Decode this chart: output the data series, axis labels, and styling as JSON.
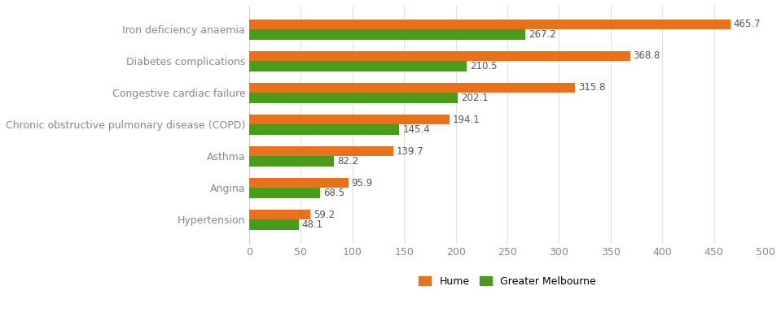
{
  "categories": [
    "Hypertension",
    "Angina",
    "Asthma",
    "Chronic obstructive pulmonary disease (COPD)",
    "Congestive cardiac failure",
    "Diabetes complications",
    "Iron deficiency anaemia"
  ],
  "hume_values": [
    59.2,
    95.9,
    139.7,
    194.1,
    315.8,
    368.8,
    465.7
  ],
  "melbourne_values": [
    48.1,
    68.5,
    82.2,
    145.4,
    202.1,
    210.5,
    267.2
  ],
  "hume_color": "#E8721C",
  "melbourne_color": "#4A9A1C",
  "bar_height": 0.32,
  "xlim": [
    0,
    500
  ],
  "xticks": [
    0,
    50,
    100,
    150,
    200,
    250,
    300,
    350,
    400,
    450,
    500
  ],
  "legend_labels": [
    "Hume",
    "Greater Melbourne"
  ],
  "cat_fontsize": 9,
  "tick_fontsize": 9,
  "value_fontsize": 8.5,
  "background_color": "#ffffff",
  "grid_color": "#e0e0e0"
}
